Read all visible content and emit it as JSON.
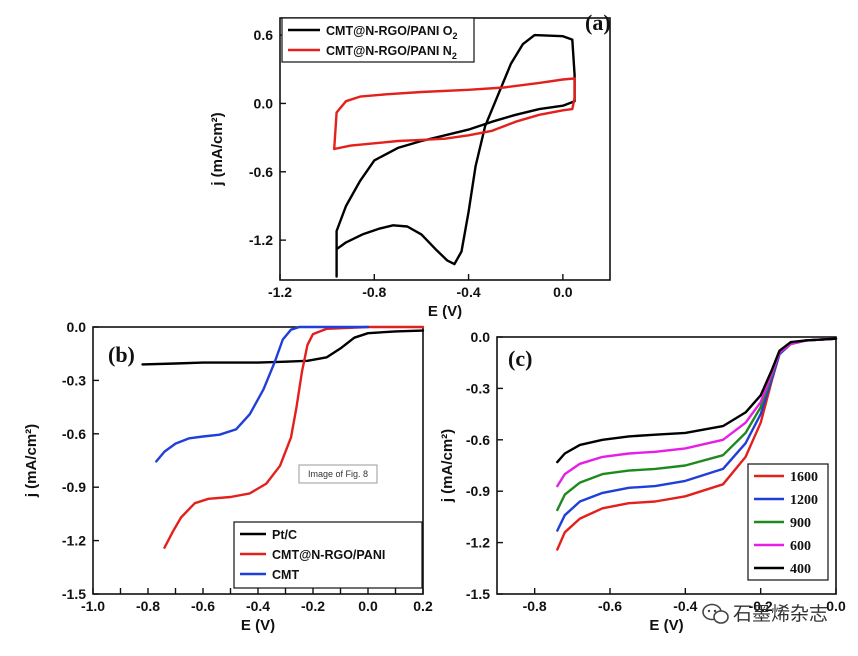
{
  "caption_overlay": "Image of Fig. 8",
  "watermark": "石墨烯杂志",
  "chart_data": [
    {
      "id": "a",
      "type": "line",
      "panel_label": "(a)",
      "xlabel": "E (V)",
      "ylabel": "j (mA/cm²)",
      "xlim": [
        -1.2,
        0.2
      ],
      "ylim": [
        -1.55,
        0.75
      ],
      "xticks": [
        -1.2,
        -0.8,
        -0.4,
        0.0
      ],
      "xtick_labels": [
        "-1.2",
        "-0.8",
        "-0.4",
        "0.0"
      ],
      "yticks": [
        0.6,
        0.0,
        -0.6,
        -1.2
      ],
      "ytick_labels": [
        "0.6",
        "0.0",
        "-0.6",
        "-1.2"
      ],
      "legend": {
        "position": "top-left"
      },
      "series": [
        {
          "name": "CMT@N-RGO/PANI O",
          "name_sub": "2",
          "color": "#000000",
          "points": [
            [
              -0.96,
              -1.52
            ],
            [
              -0.96,
              -1.28
            ],
            [
              -0.92,
              -1.22
            ],
            [
              -0.85,
              -1.15
            ],
            [
              -0.78,
              -1.1
            ],
            [
              -0.72,
              -1.07
            ],
            [
              -0.66,
              -1.08
            ],
            [
              -0.6,
              -1.15
            ],
            [
              -0.54,
              -1.28
            ],
            [
              -0.49,
              -1.38
            ],
            [
              -0.46,
              -1.41
            ],
            [
              -0.43,
              -1.3
            ],
            [
              -0.4,
              -0.95
            ],
            [
              -0.37,
              -0.55
            ],
            [
              -0.33,
              -0.2
            ],
            [
              -0.28,
              0.05
            ],
            [
              -0.22,
              0.35
            ],
            [
              -0.17,
              0.52
            ],
            [
              -0.12,
              0.6
            ],
            [
              0.0,
              0.59
            ],
            [
              0.04,
              0.56
            ],
            [
              0.05,
              0.25
            ],
            [
              0.05,
              0.02
            ],
            [
              0.0,
              -0.02
            ],
            [
              -0.1,
              -0.05
            ],
            [
              -0.2,
              -0.1
            ],
            [
              -0.3,
              -0.16
            ],
            [
              -0.4,
              -0.23
            ],
            [
              -0.5,
              -0.28
            ],
            [
              -0.6,
              -0.33
            ],
            [
              -0.7,
              -0.39
            ],
            [
              -0.8,
              -0.5
            ],
            [
              -0.86,
              -0.68
            ],
            [
              -0.92,
              -0.9
            ],
            [
              -0.96,
              -1.12
            ],
            [
              -0.96,
              -1.52
            ]
          ]
        },
        {
          "name": "CMT@N-RGO/PANI N",
          "name_sub": "2",
          "color": "#e3201b",
          "points": [
            [
              -0.97,
              -0.4
            ],
            [
              -0.96,
              -0.08
            ],
            [
              -0.92,
              0.02
            ],
            [
              -0.86,
              0.06
            ],
            [
              -0.75,
              0.08
            ],
            [
              -0.6,
              0.1
            ],
            [
              -0.4,
              0.12
            ],
            [
              -0.25,
              0.14
            ],
            [
              -0.1,
              0.18
            ],
            [
              0.0,
              0.21
            ],
            [
              0.05,
              0.22
            ],
            [
              0.05,
              0.05
            ],
            [
              0.04,
              -0.05
            ],
            [
              0.0,
              -0.06
            ],
            [
              -0.1,
              -0.1
            ],
            [
              -0.2,
              -0.16
            ],
            [
              -0.3,
              -0.24
            ],
            [
              -0.4,
              -0.28
            ],
            [
              -0.5,
              -0.31
            ],
            [
              -0.6,
              -0.32
            ],
            [
              -0.7,
              -0.33
            ],
            [
              -0.8,
              -0.35
            ],
            [
              -0.9,
              -0.37
            ],
            [
              -0.97,
              -0.4
            ]
          ]
        }
      ]
    },
    {
      "id": "b",
      "type": "line",
      "panel_label": "(b)",
      "xlabel": "E (V)",
      "ylabel": "j (mA/cm²)",
      "xlim": [
        -1.0,
        0.2
      ],
      "ylim": [
        -1.5,
        0.0
      ],
      "xticks": [
        -1.0,
        -0.9,
        -0.8,
        -0.7,
        -0.6,
        -0.5,
        -0.4,
        -0.3,
        -0.2,
        -0.1,
        0.0,
        0.1,
        0.2
      ],
      "xtick_labels": [
        "-1.0",
        "",
        "-0.8",
        "",
        "-0.6",
        "",
        "-0.4",
        "",
        "-0.2",
        "",
        "0.0",
        "",
        "0.2"
      ],
      "yticks": [
        0.0,
        -0.3,
        -0.6,
        -0.9,
        -1.2,
        -1.5
      ],
      "ytick_labels": [
        "0.0",
        "-0.3",
        "-0.6",
        "-0.9",
        "-1.2",
        "-1.5"
      ],
      "legend": {
        "position": "bottom-right"
      },
      "series": [
        {
          "name": "Pt/C",
          "color": "#000000",
          "points": [
            [
              -0.82,
              -0.21
            ],
            [
              -0.7,
              -0.205
            ],
            [
              -0.6,
              -0.2
            ],
            [
              -0.5,
              -0.2
            ],
            [
              -0.4,
              -0.2
            ],
            [
              -0.3,
              -0.195
            ],
            [
              -0.22,
              -0.19
            ],
            [
              -0.15,
              -0.17
            ],
            [
              -0.1,
              -0.12
            ],
            [
              -0.05,
              -0.06
            ],
            [
              0.0,
              -0.035
            ],
            [
              0.1,
              -0.025
            ],
            [
              0.2,
              -0.02
            ]
          ]
        },
        {
          "name": "CMT@N-RGO/PANI",
          "color": "#e3201b",
          "points": [
            [
              -0.74,
              -1.24
            ],
            [
              -0.71,
              -1.15
            ],
            [
              -0.68,
              -1.07
            ],
            [
              -0.63,
              -0.99
            ],
            [
              -0.58,
              -0.965
            ],
            [
              -0.5,
              -0.955
            ],
            [
              -0.43,
              -0.935
            ],
            [
              -0.37,
              -0.88
            ],
            [
              -0.32,
              -0.78
            ],
            [
              -0.28,
              -0.62
            ],
            [
              -0.26,
              -0.45
            ],
            [
              -0.24,
              -0.25
            ],
            [
              -0.22,
              -0.1
            ],
            [
              -0.2,
              -0.04
            ],
            [
              -0.15,
              -0.01
            ],
            [
              0.0,
              0.0
            ],
            [
              0.2,
              0.0
            ]
          ]
        },
        {
          "name": "CMT",
          "color": "#1f3fd8",
          "points": [
            [
              -0.77,
              -0.755
            ],
            [
              -0.74,
              -0.7
            ],
            [
              -0.7,
              -0.655
            ],
            [
              -0.65,
              -0.625
            ],
            [
              -0.6,
              -0.615
            ],
            [
              -0.54,
              -0.605
            ],
            [
              -0.48,
              -0.575
            ],
            [
              -0.43,
              -0.49
            ],
            [
              -0.38,
              -0.35
            ],
            [
              -0.34,
              -0.2
            ],
            [
              -0.31,
              -0.07
            ],
            [
              -0.28,
              -0.015
            ],
            [
              -0.25,
              0.0
            ],
            [
              0.0,
              0.0
            ]
          ]
        }
      ]
    },
    {
      "id": "c",
      "type": "line",
      "panel_label": "(c)",
      "xlabel": "E (V)",
      "ylabel": "j (mA/cm²)",
      "xlim": [
        -0.9,
        0.0
      ],
      "ylim": [
        -1.5,
        0.0
      ],
      "xticks": [
        -0.8,
        -0.6,
        -0.4,
        -0.2,
        0.0
      ],
      "xtick_labels": [
        "-0.8",
        "-0.6",
        "-0.4",
        "-0.2",
        "0.0"
      ],
      "yticks": [
        0.0,
        -0.3,
        -0.6,
        -0.9,
        -1.2,
        -1.5
      ],
      "ytick_labels": [
        "0.0",
        "-0.3",
        "-0.6",
        "-0.9",
        "-1.2",
        "-1.5"
      ],
      "legend": {
        "position": "bottom-right"
      },
      "series": [
        {
          "name": "1600",
          "color": "#e3201b",
          "points": [
            [
              -0.74,
              -1.24
            ],
            [
              -0.72,
              -1.14
            ],
            [
              -0.68,
              -1.06
            ],
            [
              -0.62,
              -1.0
            ],
            [
              -0.55,
              -0.97
            ],
            [
              -0.48,
              -0.96
            ],
            [
              -0.4,
              -0.93
            ],
            [
              -0.3,
              -0.86
            ],
            [
              -0.24,
              -0.7
            ],
            [
              -0.2,
              -0.5
            ],
            [
              -0.17,
              -0.25
            ],
            [
              -0.15,
              -0.1
            ],
            [
              -0.12,
              -0.04
            ],
            [
              -0.08,
              -0.02
            ],
            [
              0.0,
              -0.01
            ]
          ]
        },
        {
          "name": "1200",
          "color": "#1f3fd8",
          "points": [
            [
              -0.74,
              -1.13
            ],
            [
              -0.72,
              -1.04
            ],
            [
              -0.68,
              -0.96
            ],
            [
              -0.62,
              -0.91
            ],
            [
              -0.55,
              -0.88
            ],
            [
              -0.48,
              -0.87
            ],
            [
              -0.4,
              -0.84
            ],
            [
              -0.3,
              -0.77
            ],
            [
              -0.24,
              -0.62
            ],
            [
              -0.2,
              -0.45
            ],
            [
              -0.17,
              -0.24
            ],
            [
              -0.15,
              -0.1
            ],
            [
              -0.12,
              -0.04
            ],
            [
              -0.08,
              -0.02
            ],
            [
              0.0,
              -0.01
            ]
          ]
        },
        {
          "name": "900",
          "color": "#1e8a1e",
          "points": [
            [
              -0.74,
              -1.01
            ],
            [
              -0.72,
              -0.92
            ],
            [
              -0.68,
              -0.85
            ],
            [
              -0.62,
              -0.8
            ],
            [
              -0.55,
              -0.78
            ],
            [
              -0.48,
              -0.77
            ],
            [
              -0.4,
              -0.75
            ],
            [
              -0.3,
              -0.69
            ],
            [
              -0.24,
              -0.56
            ],
            [
              -0.2,
              -0.41
            ],
            [
              -0.17,
              -0.22
            ],
            [
              -0.15,
              -0.09
            ],
            [
              -0.12,
              -0.04
            ],
            [
              -0.08,
              -0.02
            ],
            [
              0.0,
              -0.01
            ]
          ]
        },
        {
          "name": "600",
          "color": "#e61ee6",
          "points": [
            [
              -0.74,
              -0.87
            ],
            [
              -0.72,
              -0.8
            ],
            [
              -0.68,
              -0.74
            ],
            [
              -0.62,
              -0.7
            ],
            [
              -0.55,
              -0.68
            ],
            [
              -0.48,
              -0.67
            ],
            [
              -0.4,
              -0.65
            ],
            [
              -0.3,
              -0.6
            ],
            [
              -0.24,
              -0.5
            ],
            [
              -0.2,
              -0.38
            ],
            [
              -0.17,
              -0.21
            ],
            [
              -0.15,
              -0.09
            ],
            [
              -0.12,
              -0.04
            ],
            [
              -0.08,
              -0.02
            ],
            [
              0.0,
              -0.01
            ]
          ]
        },
        {
          "name": "400",
          "color": "#000000",
          "points": [
            [
              -0.74,
              -0.73
            ],
            [
              -0.72,
              -0.68
            ],
            [
              -0.68,
              -0.63
            ],
            [
              -0.62,
              -0.6
            ],
            [
              -0.55,
              -0.58
            ],
            [
              -0.48,
              -0.57
            ],
            [
              -0.4,
              -0.56
            ],
            [
              -0.3,
              -0.52
            ],
            [
              -0.24,
              -0.44
            ],
            [
              -0.2,
              -0.34
            ],
            [
              -0.17,
              -0.19
            ],
            [
              -0.15,
              -0.08
            ],
            [
              -0.12,
              -0.03
            ],
            [
              -0.08,
              -0.02
            ],
            [
              0.0,
              -0.01
            ]
          ]
        }
      ]
    }
  ]
}
